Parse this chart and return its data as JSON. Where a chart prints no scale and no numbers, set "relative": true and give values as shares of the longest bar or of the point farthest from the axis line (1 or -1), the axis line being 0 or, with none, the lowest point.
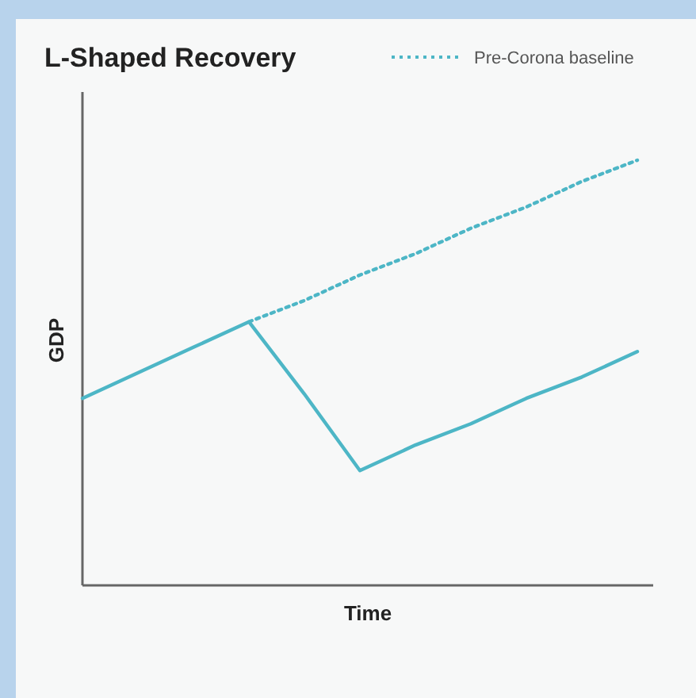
{
  "chart_data": {
    "type": "line",
    "title": "L-Shaped Recovery",
    "xlabel": "Time",
    "ylabel": "GDP",
    "relative": true,
    "legend": "top right",
    "marker": "none",
    "categories": [
      null,
      null,
      null,
      null,
      null,
      null,
      null,
      null,
      null,
      null,
      null
    ],
    "series": [
      {
        "color": "#4db6c6",
        "line_style": "solid",
        "values": [
          0.44,
          0.5,
          0.56,
          0.62,
          0.45,
          0.27,
          0.33,
          0.38,
          0.44,
          0.49,
          0.55
        ]
      },
      {
        "name": "Pre-Corona baseline",
        "color": "#4db6c6",
        "line_style": "dotted",
        "values": [
          null,
          null,
          null,
          0.62,
          0.67,
          0.73,
          0.78,
          0.84,
          0.89,
          0.95,
          1.0
        ]
      }
    ]
  }
}
